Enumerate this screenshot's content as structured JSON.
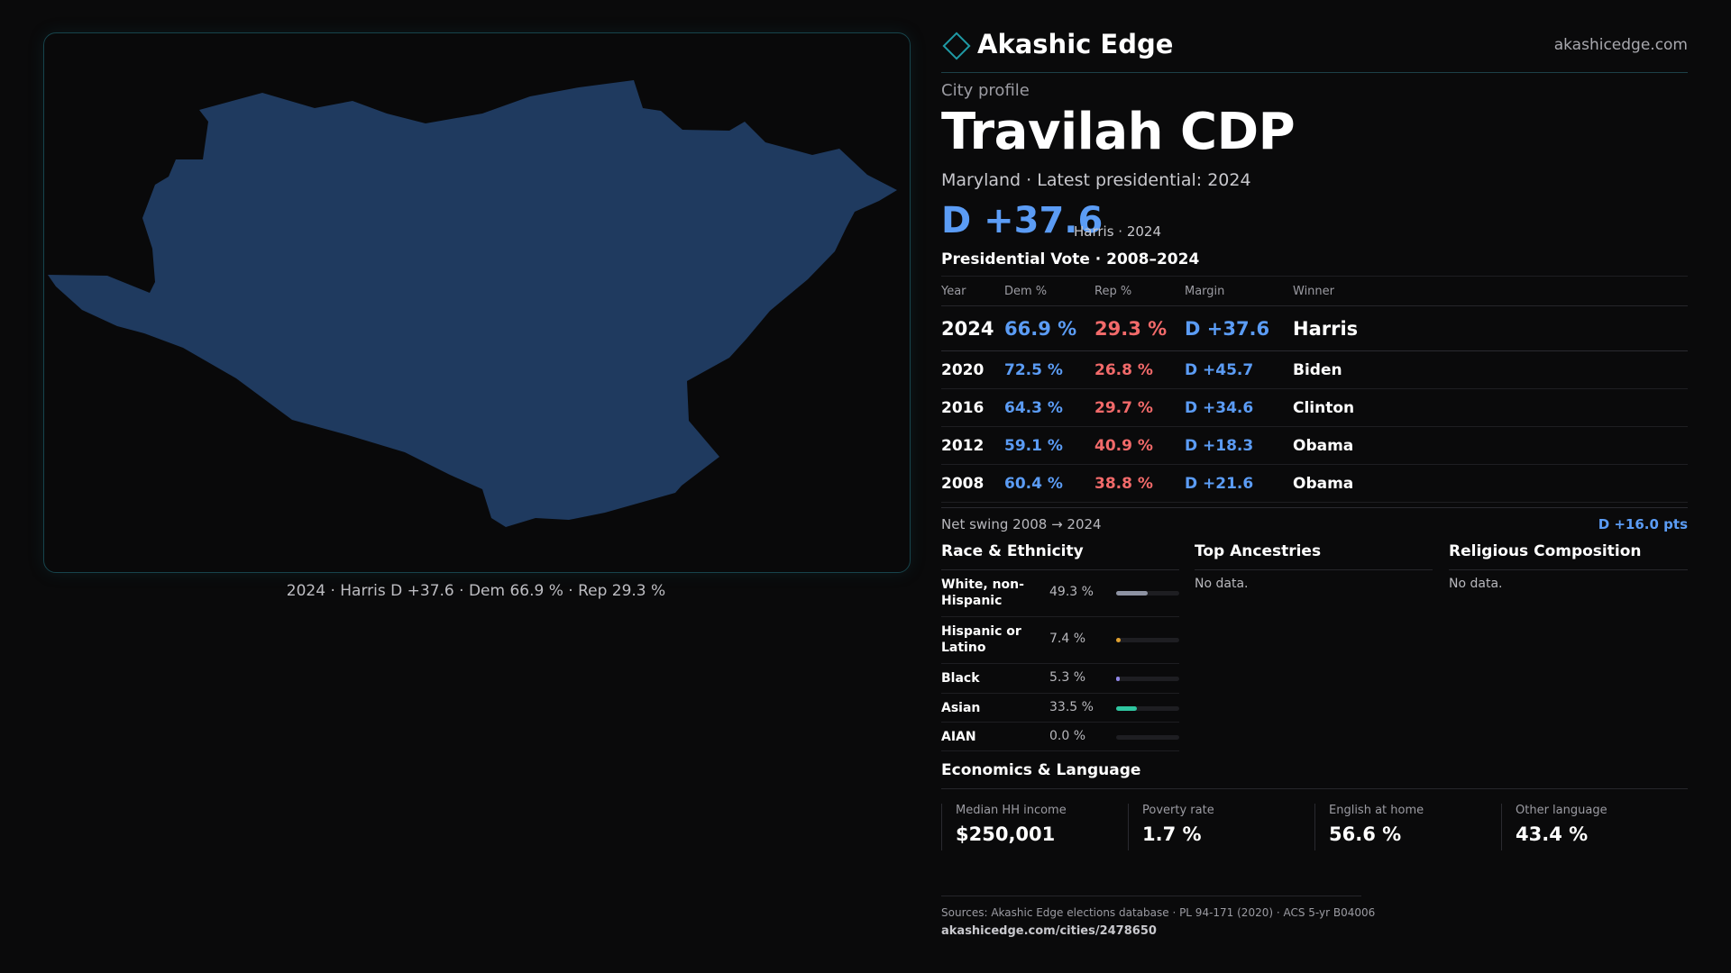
{
  "map": {
    "caption": "2024 · Harris D +37.6 · Dem 66.9 % · Rep 29.3 %",
    "fill_color": "#1f3a5f"
  },
  "header": {
    "brand_name": "Akashic Edge",
    "brand_icon": "diamond-icon",
    "site_url": "akashicedge.com"
  },
  "profile": {
    "eyebrow": "City profile",
    "title": "Travilah CDP",
    "subtitle": "Maryland · Latest presidential: 2024",
    "headline_margin": "D +37.6",
    "headline_note": "Harris · 2024"
  },
  "votes": {
    "title": "Presidential Vote · 2008–2024",
    "headers": [
      "Year",
      "Dem %",
      "Rep %",
      "Margin",
      "Winner"
    ],
    "rows": [
      {
        "year": "2024",
        "dem": "66.9 %",
        "rep": "29.3 %",
        "margin": "D +37.6",
        "winner": "Harris"
      },
      {
        "year": "2020",
        "dem": "72.5 %",
        "rep": "26.8 %",
        "margin": "D +45.7",
        "winner": "Biden"
      },
      {
        "year": "2016",
        "dem": "64.3 %",
        "rep": "29.7 %",
        "margin": "D +34.6",
        "winner": "Clinton"
      },
      {
        "year": "2012",
        "dem": "59.1 %",
        "rep": "40.9 %",
        "margin": "D +18.3",
        "winner": "Obama"
      },
      {
        "year": "2008",
        "dem": "60.4 %",
        "rep": "38.8 %",
        "margin": "D +21.6",
        "winner": "Obama"
      }
    ],
    "swing_label": "Net swing 2008 → 2024",
    "swing_value": "D +16.0 pts"
  },
  "race": {
    "title": "Race & Ethnicity",
    "rows": [
      {
        "label": "White, non-Hispanic",
        "pct": "49.3 %",
        "fraction": 0.493,
        "color": "#8e93a3"
      },
      {
        "label": "Hispanic or Latino",
        "pct": "7.4 %",
        "fraction": 0.074,
        "color": "#e0a030"
      },
      {
        "label": "Black",
        "pct": "5.3 %",
        "fraction": 0.053,
        "color": "#8f86e6"
      },
      {
        "label": "Asian",
        "pct": "33.5 %",
        "fraction": 0.335,
        "color": "#2fc6a0"
      },
      {
        "label": "AIAN",
        "pct": "0.0 %",
        "fraction": 0.0,
        "color": "#8e93a3"
      }
    ]
  },
  "ancestries": {
    "title": "Top Ancestries",
    "empty": "No data."
  },
  "religion": {
    "title": "Religious Composition",
    "empty": "No data."
  },
  "economics": {
    "title": "Economics & Language",
    "stats": [
      {
        "label": "Median HH income",
        "value": "$250,001"
      },
      {
        "label": "Poverty rate",
        "value": "1.7 %"
      },
      {
        "label": "English at home",
        "value": "56.6 %"
      },
      {
        "label": "Other language",
        "value": "43.4 %"
      }
    ]
  },
  "footer": {
    "sources": "Sources: Akashic Edge elections database · PL 94-171 (2020) · ACS 5-yr B04006",
    "link": "akashicedge.com/cities/2478650"
  }
}
